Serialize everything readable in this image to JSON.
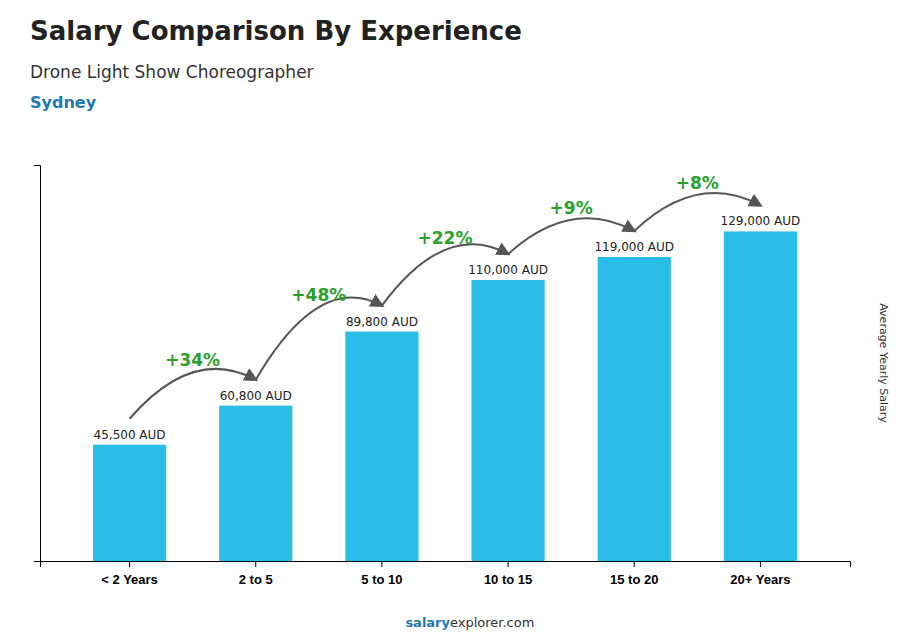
{
  "chart_data": {
    "type": "bar",
    "title": "Salary Comparison By Experience",
    "subtitle": "Drone Light Show Choreographer",
    "city": "Sydney",
    "ylabel": "Average Yearly Salary",
    "categories": [
      "< 2 Years",
      "2 to 5",
      "5 to 10",
      "10 to 15",
      "15 to 20",
      "20+ Years"
    ],
    "values": [
      45500,
      60800,
      89800,
      110000,
      119000,
      129000
    ],
    "value_labels": [
      "45,500 AUD",
      "60,800 AUD",
      "89,800 AUD",
      "110,000 AUD",
      "119,000 AUD",
      "129,000 AUD"
    ],
    "data_labels": true,
    "annotations": [
      "+34%",
      "+48%",
      "+22%",
      "+9%",
      "+8%"
    ],
    "footer": [
      "salary",
      "explorer.com"
    ],
    "color": "#29bde8",
    "ylim": [
      0,
      155000
    ],
    "tick_labels": "x"
  }
}
